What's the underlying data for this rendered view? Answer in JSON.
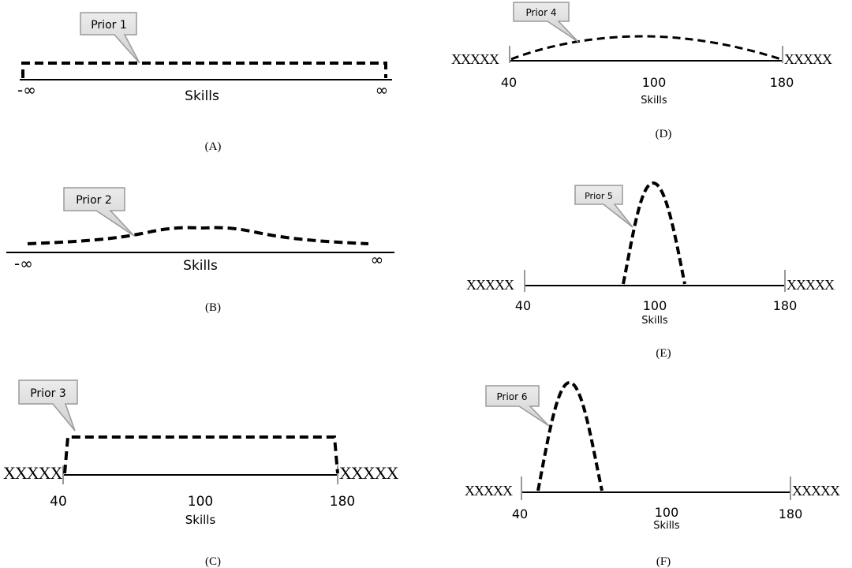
{
  "panels": [
    {
      "id": "A",
      "caption": "(A)",
      "prior_label": "Prior 1",
      "axis_label": "Skills",
      "left_tick": "-∞",
      "right_tick": "∞",
      "curve": "uniform"
    },
    {
      "id": "B",
      "caption": "(B)",
      "prior_label": "Prior 2",
      "axis_label": "Skills",
      "left_tick": "-∞",
      "right_tick": "∞",
      "curve": "wide-normal"
    },
    {
      "id": "C",
      "caption": "(C)",
      "prior_label": "Prior 3",
      "axis_label": "Skills",
      "ticks": [
        "40",
        "100",
        "180"
      ],
      "excluded_marker": "XXXXX",
      "curve": "bounded-uniform"
    },
    {
      "id": "D",
      "caption": "(D)",
      "prior_label": "Prior 4",
      "axis_label": "Skills",
      "ticks": [
        "40",
        "100",
        "180"
      ],
      "excluded_marker": "XXXXX",
      "curve": "bounded-wide-bell"
    },
    {
      "id": "E",
      "caption": "(E)",
      "prior_label": "Prior 5",
      "axis_label": "Skills",
      "ticks": [
        "40",
        "100",
        "180"
      ],
      "excluded_marker": "XXXXX",
      "curve": "narrow-peak-centered"
    },
    {
      "id": "F",
      "caption": "(F)",
      "prior_label": "Prior 6",
      "axis_label": "Skills",
      "ticks": [
        "40",
        "100",
        "180"
      ],
      "excluded_marker": "XXXXX",
      "curve": "narrow-peak-left"
    }
  ],
  "colors": {
    "line": "#000000",
    "callout_fill": "#d9d9d9",
    "callout_stroke": "#9a9a9a",
    "tick": "#999999"
  }
}
